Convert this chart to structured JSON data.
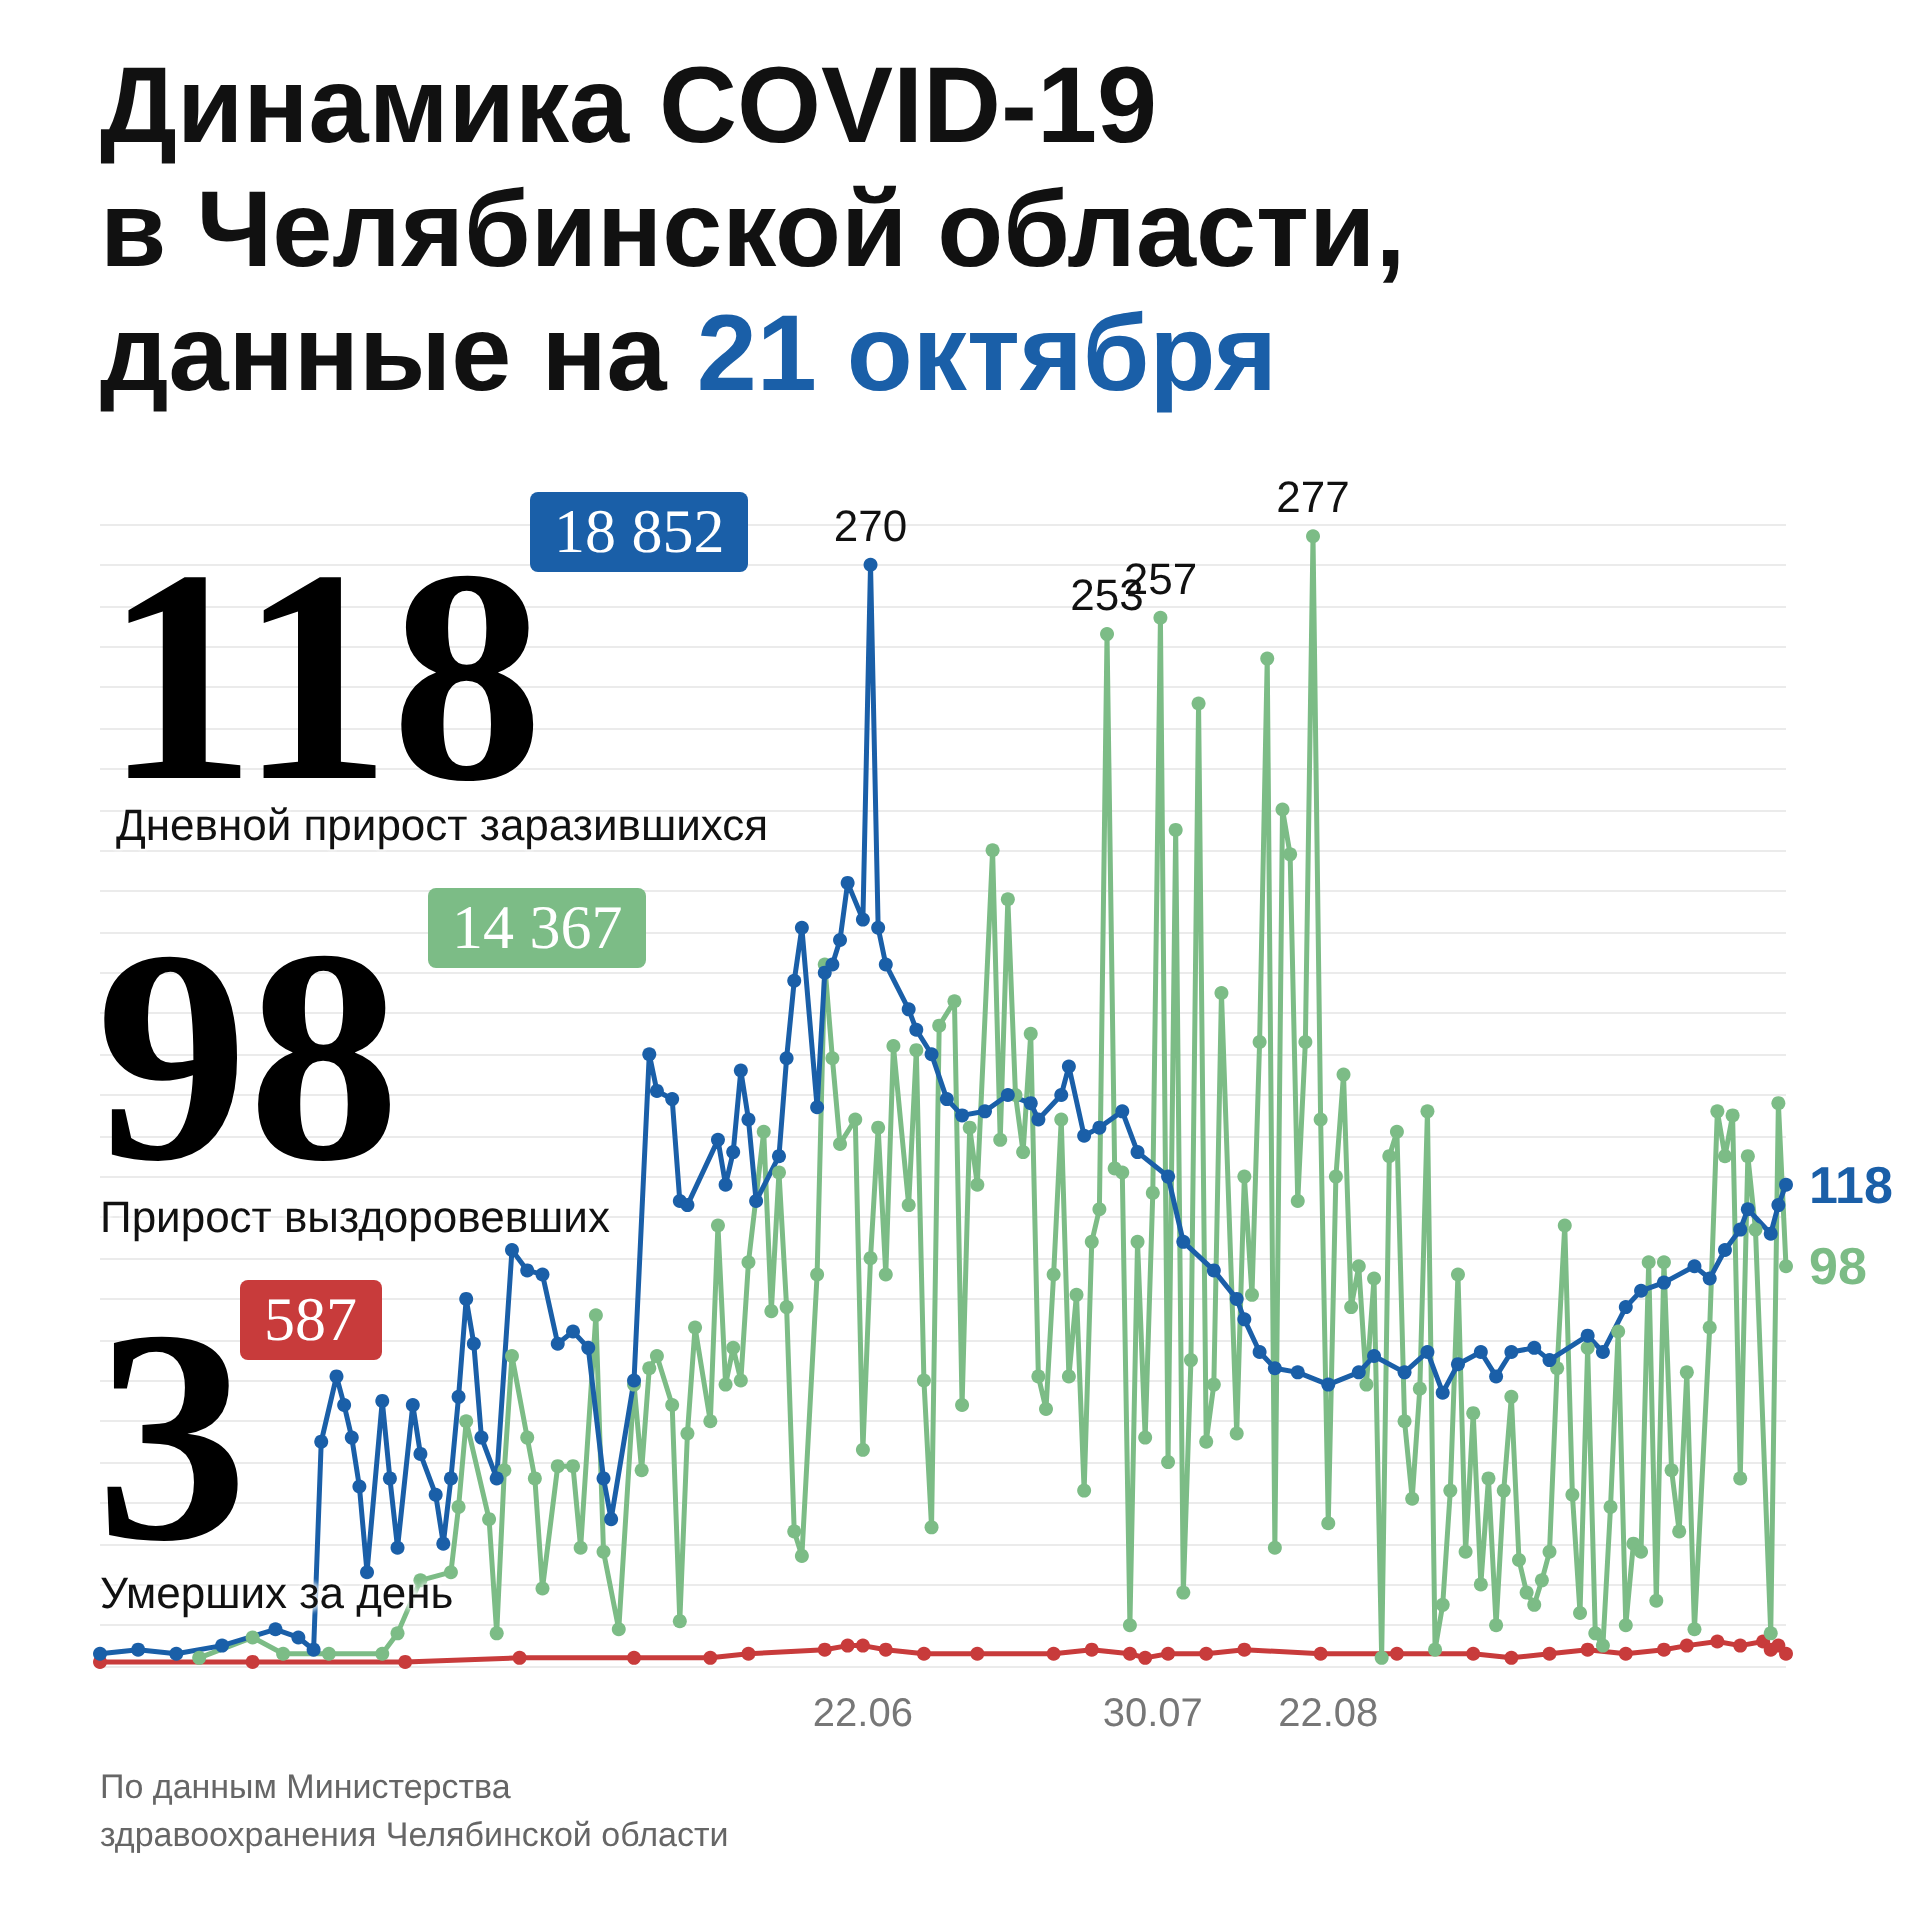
{
  "chart_data": {
    "type": "line",
    "title": "Динамика COVID-19\nв Челябинской области,\nданные на 21 октября",
    "xlim": [
      "--03-14",
      "--10-21"
    ],
    "xticks": [
      {
        "value": "--06-22",
        "label": "22.06"
      },
      {
        "value": "--07-30",
        "label": "30.07"
      },
      {
        "value": "--08-22",
        "label": "22.08"
      }
    ],
    "ylim": [
      0,
      280
    ],
    "grid": "y",
    "marker": "circle",
    "tick_labels": "x",
    "series": [
      {
        "color": "#1a5fa8",
        "x": [
          "--03-14",
          "--03-19",
          "--03-24",
          "--03-30",
          "--04-06",
          "--04-09",
          "--04-11",
          "--04-12",
          "--04-14",
          "--04-15",
          "--04-16",
          "--04-17",
          "--04-18",
          "--04-20",
          "--04-21",
          "--04-22",
          "--04-24",
          "--04-25",
          "--04-27",
          "--04-28",
          "--04-29",
          "--04-30",
          "--05-01",
          "--05-02",
          "--05-03",
          "--05-05",
          "--05-07",
          "--05-09",
          "--05-11",
          "--05-13",
          "--05-15",
          "--05-17",
          "--05-19",
          "--05-20",
          "--05-23",
          "--05-25",
          "--05-26",
          "--05-28",
          "--05-29",
          "--05-30",
          "--06-03",
          "--06-04",
          "--06-05",
          "--06-06",
          "--06-07",
          "--06-08",
          "--06-11",
          "--06-12",
          "--06-13",
          "--06-14",
          "--06-16",
          "--06-17",
          "--06-18",
          "--06-19",
          "--06-20",
          "--06-22",
          "--06-23",
          "--06-24",
          "--06-25",
          "--06-28",
          "--06-29",
          "--07-01",
          "--07-03",
          "--07-05",
          "--07-08",
          "--07-11",
          "--07-14",
          "--07-15",
          "--07-18",
          "--07-19",
          "--07-21",
          "--07-23",
          "--07-26",
          "--07-28",
          "--08-01",
          "--08-03",
          "--08-07",
          "--08-10",
          "--08-11",
          "--08-13",
          "--08-15",
          "--08-18",
          "--08-22",
          "--08-26",
          "--08-28",
          "--09-01",
          "--09-04",
          "--09-06",
          "--09-08",
          "--09-11",
          "--09-13",
          "--09-15",
          "--09-18",
          "--09-20",
          "--09-25",
          "--09-27",
          "--09-30",
          "--10-02",
          "--10-05",
          "--10-09",
          "--10-11",
          "--10-13",
          "--10-15",
          "--10-16",
          "--10-19",
          "--10-20",
          "--10-21"
        ],
        "value_labels": [
          null,
          null,
          null,
          null,
          null,
          null,
          null,
          null,
          null,
          null,
          null,
          null,
          null,
          null,
          null,
          null,
          null,
          null,
          null,
          null,
          null,
          null,
          null,
          null,
          null,
          null,
          null,
          null,
          null,
          null,
          null,
          null,
          null,
          null,
          null,
          null,
          null,
          null,
          null,
          null,
          null,
          null,
          null,
          null,
          null,
          null,
          null,
          null,
          null,
          null,
          null,
          null,
          null,
          null,
          null,
          null,
          "270",
          null,
          null,
          null,
          null,
          null,
          null,
          null,
          null,
          null,
          null,
          null,
          null,
          null,
          null,
          null,
          null,
          null,
          null,
          null,
          null,
          null,
          null,
          null,
          null,
          null,
          null,
          null,
          null,
          null,
          null,
          null,
          null,
          null,
          null,
          null,
          null,
          null,
          null,
          null,
          null,
          null,
          null,
          null,
          null,
          null,
          null,
          null,
          null,
          null,
          "118"
        ],
        "values": [
          3,
          4,
          3,
          5,
          9,
          7,
          4,
          55,
          71,
          64,
          56,
          44,
          23,
          65,
          46,
          29,
          64,
          52,
          42,
          30,
          46,
          66,
          90,
          79,
          56,
          46,
          102,
          97,
          96,
          79,
          82,
          78,
          46,
          36,
          70,
          150,
          141,
          139,
          114,
          113,
          129,
          118,
          126,
          146,
          134,
          114,
          125,
          149,
          168,
          181,
          137,
          170,
          172,
          178,
          192,
          183,
          270,
          181,
          172,
          161,
          156,
          150,
          139,
          135,
          136,
          140,
          138,
          134,
          140,
          147,
          130,
          132,
          136,
          126,
          120,
          104,
          97,
          90,
          85,
          77,
          73,
          72,
          69,
          72,
          76,
          72,
          77,
          67,
          74,
          77,
          71,
          77,
          78,
          75,
          81,
          77,
          88,
          92,
          94,
          98,
          95,
          102,
          107,
          112,
          106,
          113,
          118
        ]
      },
      {
        "color": "#7cbc86",
        "x": [
          "--03-27",
          "--04-03",
          "--04-07",
          "--04-13",
          "--04-20",
          "--04-22",
          "--04-25",
          "--04-29",
          "--04-30",
          "--05-01",
          "--05-04",
          "--05-05",
          "--05-06",
          "--05-07",
          "--05-09",
          "--05-10",
          "--05-11",
          "--05-13",
          "--05-15",
          "--05-16",
          "--05-18",
          "--05-19",
          "--05-21",
          "--05-23",
          "--05-24",
          "--05-25",
          "--05-26",
          "--05-28",
          "--05-29",
          "--05-30",
          "--05-31",
          "--06-02",
          "--06-03",
          "--06-04",
          "--06-05",
          "--06-06",
          "--06-07",
          "--06-09",
          "--06-10",
          "--06-11",
          "--06-12",
          "--06-13",
          "--06-14",
          "--06-16",
          "--06-17",
          "--06-18",
          "--06-19",
          "--06-21",
          "--06-22",
          "--06-23",
          "--06-24",
          "--06-25",
          "--06-26",
          "--06-28",
          "--06-29",
          "--06-30",
          "--07-01",
          "--07-02",
          "--07-04",
          "--07-05",
          "--07-06",
          "--07-07",
          "--07-09",
          "--07-10",
          "--07-11",
          "--07-12",
          "--07-13",
          "--07-14",
          "--07-15",
          "--07-16",
          "--07-17",
          "--07-18",
          "--07-19",
          "--07-20",
          "--07-21",
          "--07-22",
          "--07-23",
          "--07-24",
          "--07-25",
          "--07-26",
          "--07-27",
          "--07-28",
          "--07-29",
          "--07-30",
          "--07-31",
          "--08-01",
          "--08-02",
          "--08-03",
          "--08-04",
          "--08-05",
          "--08-06",
          "--08-07",
          "--08-08",
          "--08-10",
          "--08-11",
          "--08-12",
          "--08-13",
          "--08-14",
          "--08-15",
          "--08-16",
          "--08-17",
          "--08-18",
          "--08-19",
          "--08-20",
          "--08-21",
          "--08-22",
          "--08-23",
          "--08-24",
          "--08-25",
          "--08-26",
          "--08-27",
          "--08-28",
          "--08-29",
          "--08-30",
          "--08-31",
          "--09-01",
          "--09-02",
          "--09-03",
          "--09-04",
          "--09-05",
          "--09-06",
          "--09-07",
          "--09-08",
          "--09-09",
          "--09-10",
          "--09-11",
          "--09-12",
          "--09-13",
          "--09-14",
          "--09-15",
          "--09-16",
          "--09-17",
          "--09-18",
          "--09-19",
          "--09-20",
          "--09-21",
          "--09-22",
          "--09-23",
          "--09-24",
          "--09-25",
          "--09-26",
          "--09-27",
          "--09-28",
          "--09-29",
          "--09-30",
          "--10-01",
          "--10-02",
          "--10-03",
          "--10-04",
          "--10-05",
          "--10-06",
          "--10-07",
          "--10-08",
          "--10-09",
          "--10-11",
          "--10-12",
          "--10-13",
          "--10-14",
          "--10-15",
          "--10-16",
          "--10-17",
          "--10-19",
          "--10-20",
          "--10-21"
        ],
        "value_labels": [
          null,
          null,
          null,
          null,
          null,
          null,
          null,
          null,
          null,
          null,
          null,
          null,
          null,
          null,
          null,
          null,
          null,
          null,
          null,
          null,
          null,
          null,
          null,
          null,
          null,
          null,
          null,
          null,
          null,
          null,
          null,
          null,
          null,
          null,
          null,
          null,
          null,
          null,
          null,
          null,
          null,
          null,
          null,
          null,
          null,
          null,
          null,
          null,
          null,
          null,
          null,
          null,
          null,
          null,
          null,
          null,
          null,
          null,
          null,
          null,
          null,
          null,
          null,
          null,
          null,
          null,
          null,
          null,
          null,
          null,
          null,
          null,
          null,
          null,
          null,
          null,
          null,
          "253",
          null,
          null,
          null,
          null,
          null,
          null,
          "257",
          null,
          null,
          null,
          null,
          null,
          null,
          null,
          null,
          null,
          null,
          null,
          null,
          null,
          null,
          null,
          null,
          null,
          null,
          "277",
          null,
          null,
          null,
          null,
          null,
          null,
          null,
          null,
          null,
          null,
          null,
          null,
          null,
          null,
          null,
          null,
          null,
          null,
          null,
          null,
          null,
          null,
          null,
          null,
          null,
          null,
          null,
          null,
          null,
          null,
          null,
          null,
          null,
          null,
          null,
          null,
          null,
          null,
          null,
          null,
          null,
          null,
          null,
          null,
          null,
          null,
          null,
          null,
          null,
          null,
          null,
          null,
          null,
          null,
          null,
          null,
          null,
          null,
          null,
          "98"
        ],
        "values": [
          2,
          7,
          3,
          3,
          3,
          8,
          21,
          23,
          39,
          60,
          36,
          8,
          48,
          76,
          56,
          46,
          19,
          49,
          49,
          29,
          86,
          28,
          9,
          69,
          48,
          73,
          76,
          64,
          11,
          57,
          83,
          60,
          108,
          69,
          78,
          70,
          99,
          131,
          87,
          121,
          88,
          33,
          27,
          96,
          172,
          149,
          128,
          134,
          53,
          100,
          132,
          96,
          152,
          113,
          151,
          70,
          34,
          157,
          163,
          64,
          132,
          118,
          200,
          129,
          188,
          140,
          126,
          155,
          71,
          63,
          96,
          134,
          71,
          91,
          43,
          104,
          112,
          253,
          122,
          121,
          10,
          104,
          56,
          116,
          257,
          50,
          205,
          18,
          75,
          236,
          55,
          69,
          165,
          57,
          120,
          91,
          153,
          247,
          29,
          210,
          199,
          114,
          153,
          277,
          134,
          35,
          120,
          145,
          88,
          98,
          69,
          95,
          2,
          125,
          131,
          60,
          41,
          68,
          136,
          4,
          15,
          43,
          96,
          28,
          62,
          20,
          46,
          10,
          43,
          66,
          26,
          18,
          15,
          21,
          28,
          73,
          108,
          42,
          13,
          78,
          8,
          5,
          39,
          82,
          10,
          30,
          28,
          99,
          16,
          99,
          48,
          33,
          72,
          9,
          83,
          136,
          125,
          135,
          46,
          125,
          107,
          8,
          138,
          98
        ]
      },
      {
        "color": "#c83b3b",
        "x": [
          "--03-14",
          "--04-03",
          "--04-23",
          "--05-08",
          "--05-23",
          "--06-02",
          "--06-07",
          "--06-17",
          "--06-20",
          "--06-22",
          "--06-25",
          "--06-30",
          "--07-07",
          "--07-17",
          "--07-22",
          "--07-27",
          "--07-29",
          "--08-01",
          "--08-06",
          "--08-11",
          "--08-21",
          "--08-31",
          "--09-10",
          "--09-15",
          "--09-20",
          "--09-25",
          "--09-30",
          "--10-05",
          "--10-08",
          "--10-12",
          "--10-15",
          "--10-18",
          "--10-19",
          "--10-20",
          "--10-21"
        ],
        "values": [
          1,
          1,
          1,
          2,
          2,
          2,
          3,
          4,
          5,
          5,
          4,
          3,
          3,
          3,
          4,
          3,
          2,
          3,
          3,
          4,
          3,
          3,
          3,
          2,
          3,
          4,
          3,
          4,
          5,
          6,
          5,
          6,
          4,
          5,
          3
        ]
      }
    ],
    "annotations": [
      "118",
      "18 852",
      "Дневной прирост заразившихся",
      "98",
      "14 367",
      "Прирост выздоровевших",
      "3",
      "587",
      "Умерших за день",
      "По данным Министерства\nздравоохранения Челябинской области"
    ]
  }
}
